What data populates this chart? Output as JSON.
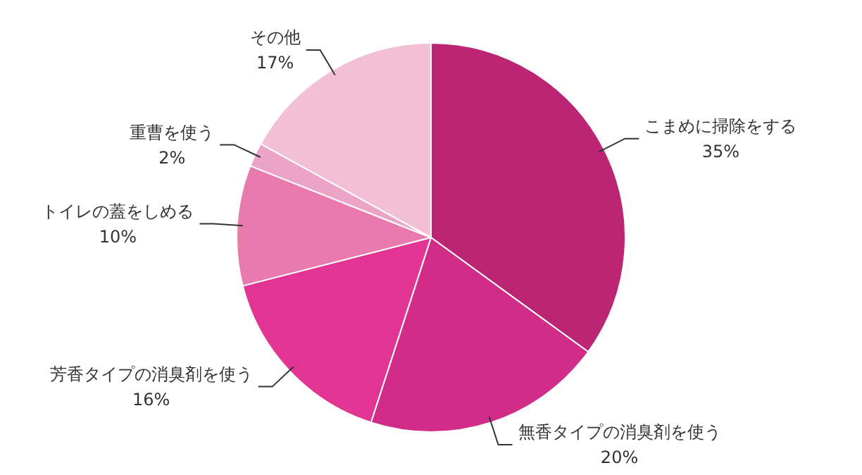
{
  "chart_data": {
    "type": "pie",
    "categories": [
      "こまめに掃除をする",
      "無香タイプの消臭剤を使う",
      "芳香タイプの消臭剤を使う",
      "トイレの蓋をしめる",
      "重曹を使う",
      "その他"
    ],
    "values": [
      35,
      20,
      16,
      10,
      2,
      17
    ],
    "colors": [
      "#bc2474",
      "#d02c88",
      "#e23493",
      "#e87aad",
      "#eba3c6",
      "#f2bfd4"
    ],
    "value_labels": [
      "35%",
      "20%",
      "16%",
      "10%",
      "2%",
      "17%"
    ]
  }
}
